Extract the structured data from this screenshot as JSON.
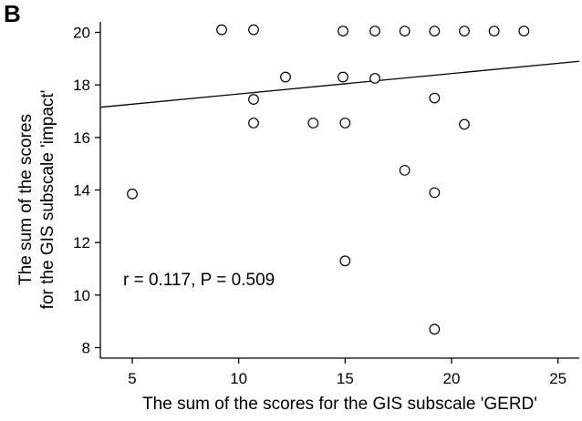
{
  "panel_label": "B",
  "annotation": "r = 0.117, P = 0.509",
  "chart_data": {
    "type": "scatter",
    "title": "",
    "xlabel": "The sum of the scores for the GIS subscale 'GERD'",
    "ylabel_lines": [
      "The sum of the scores",
      "for the GIS subscale 'impact'"
    ],
    "xlim": [
      3.5,
      26
    ],
    "ylim": [
      7.6,
      20.4
    ],
    "xticks": [
      5,
      10,
      15,
      20,
      25
    ],
    "yticks": [
      8,
      10,
      12,
      14,
      16,
      18,
      20
    ],
    "grid": false,
    "points": [
      {
        "x": 5,
        "y": 13.85
      },
      {
        "x": 9.2,
        "y": 20.1
      },
      {
        "x": 10.7,
        "y": 20.1
      },
      {
        "x": 10.7,
        "y": 17.45
      },
      {
        "x": 10.7,
        "y": 16.55
      },
      {
        "x": 12.2,
        "y": 18.3
      },
      {
        "x": 13.5,
        "y": 16.55
      },
      {
        "x": 14.9,
        "y": 20.05
      },
      {
        "x": 14.9,
        "y": 18.3
      },
      {
        "x": 15.0,
        "y": 16.55
      },
      {
        "x": 15.0,
        "y": 11.3
      },
      {
        "x": 16.4,
        "y": 20.05
      },
      {
        "x": 16.4,
        "y": 18.25
      },
      {
        "x": 17.8,
        "y": 20.05
      },
      {
        "x": 17.8,
        "y": 14.75
      },
      {
        "x": 19.2,
        "y": 20.05
      },
      {
        "x": 19.2,
        "y": 17.5
      },
      {
        "x": 19.2,
        "y": 13.9
      },
      {
        "x": 19.2,
        "y": 8.7
      },
      {
        "x": 20.6,
        "y": 20.05
      },
      {
        "x": 20.6,
        "y": 16.5
      },
      {
        "x": 22.0,
        "y": 20.05
      },
      {
        "x": 23.4,
        "y": 20.05
      }
    ],
    "regression_line": {
      "x": [
        3.5,
        26
      ],
      "y": [
        17.15,
        18.9
      ]
    }
  }
}
